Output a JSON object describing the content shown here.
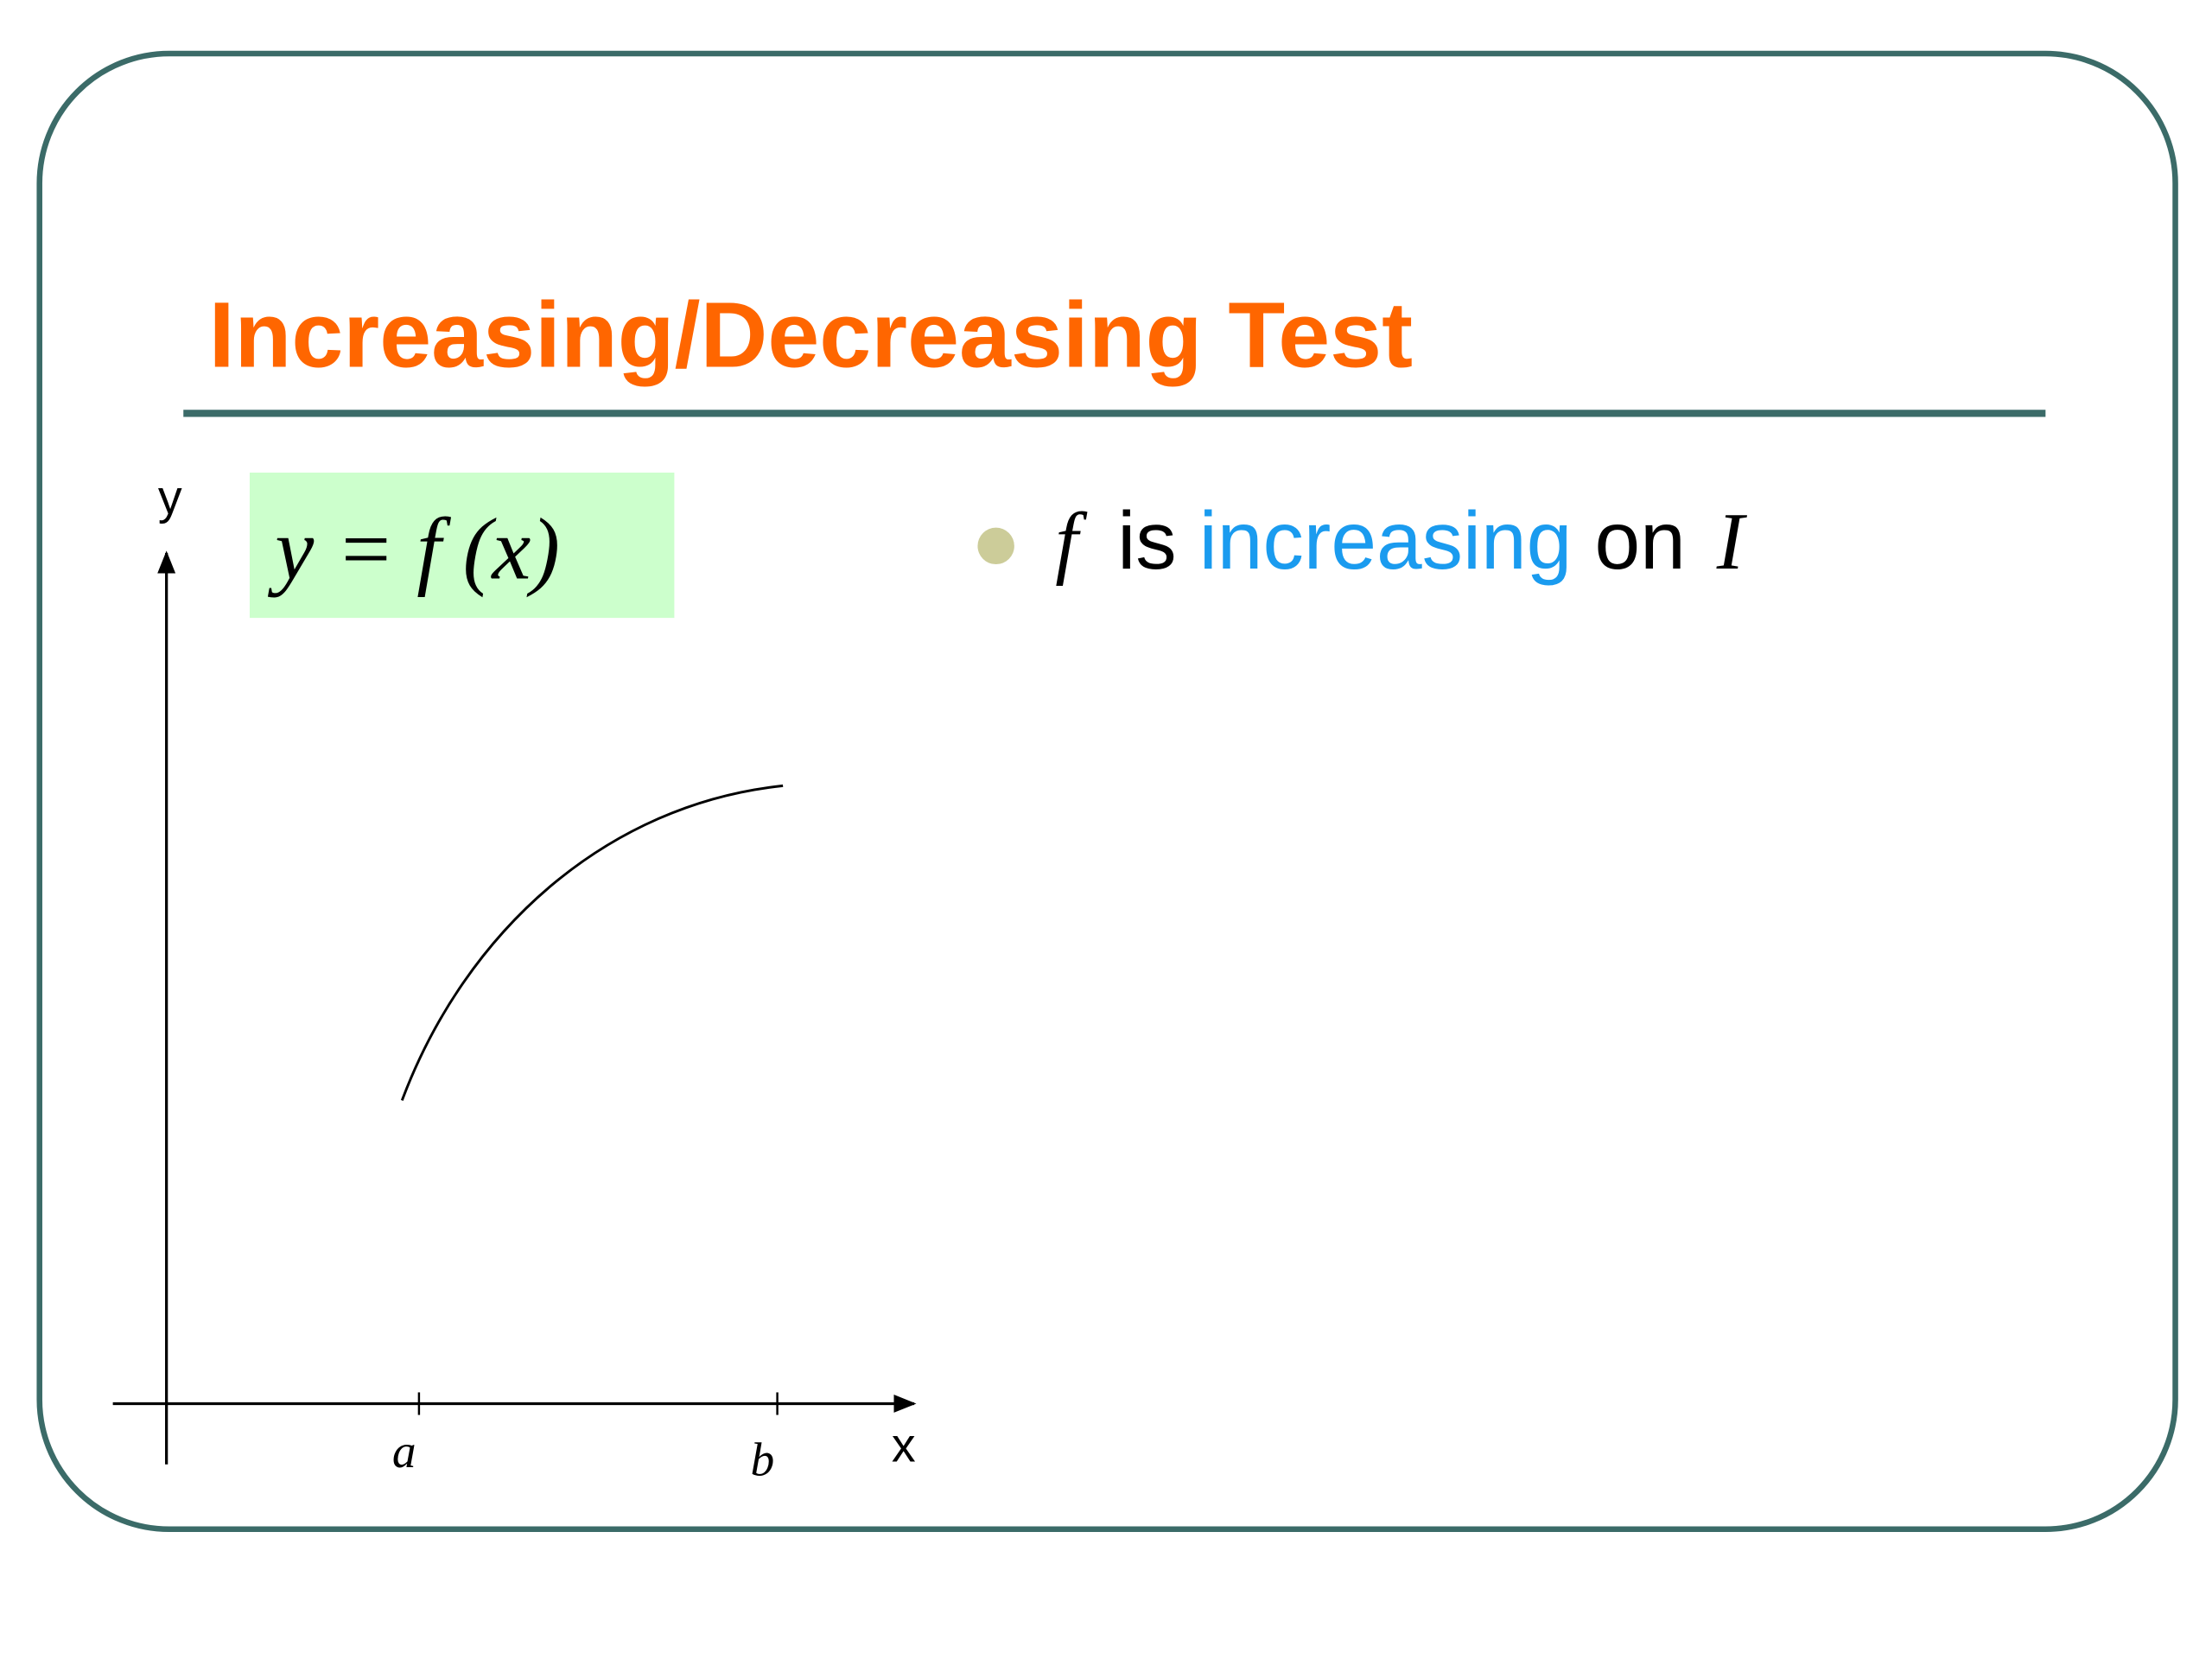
{
  "slide": {
    "title": "Increasing/Decreasing Test",
    "formula": "y = f (x)",
    "bullet": {
      "parts": [
        "f",
        "is",
        "increasing",
        "on",
        "I"
      ]
    }
  },
  "graph": {
    "y_label": "y",
    "x_label": "x",
    "tick_labels": [
      "a",
      "b"
    ]
  }
}
